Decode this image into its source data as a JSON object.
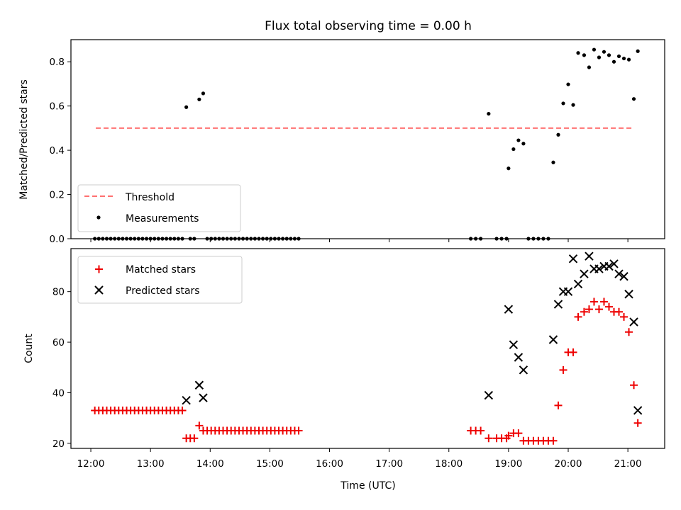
{
  "title": "Flux total observing time = 0.00 h",
  "colors": {
    "threshold": "#ff7070",
    "measurements": "#000000",
    "matched": "#ee0000",
    "predicted": "#000000"
  },
  "chart_data": [
    {
      "type": "scatter",
      "name": "ratio",
      "ylabel": "Matched/Predicted stars",
      "xlim": [
        "11:40",
        "21:37"
      ],
      "ylim": [
        0,
        0.9
      ],
      "yticks": [
        "0.0",
        "0.2",
        "0.4",
        "0.6",
        "0.8"
      ],
      "legend_position": "lower-left",
      "grid": false,
      "series": [
        {
          "name": "Threshold",
          "kind": "dashed-line",
          "x": [
            "12:05",
            "21:05"
          ],
          "y": [
            0.5,
            0.5
          ]
        },
        {
          "name": "Measurements",
          "kind": "points",
          "points": [
            [
              "12:04",
              0
            ],
            [
              "12:08",
              0
            ],
            [
              "12:12",
              0
            ],
            [
              "12:16",
              0
            ],
            [
              "12:20",
              0
            ],
            [
              "12:24",
              0
            ],
            [
              "12:28",
              0
            ],
            [
              "12:32",
              0
            ],
            [
              "12:36",
              0
            ],
            [
              "12:40",
              0
            ],
            [
              "12:44",
              0
            ],
            [
              "12:48",
              0
            ],
            [
              "12:52",
              0
            ],
            [
              "12:56",
              0
            ],
            [
              "13:00",
              0
            ],
            [
              "13:04",
              0
            ],
            [
              "13:08",
              0
            ],
            [
              "13:12",
              0
            ],
            [
              "13:16",
              0
            ],
            [
              "13:20",
              0
            ],
            [
              "13:24",
              0
            ],
            [
              "13:28",
              0
            ],
            [
              "13:32",
              0
            ],
            [
              "13:36",
              0.595
            ],
            [
              "13:40",
              0
            ],
            [
              "13:44",
              0
            ],
            [
              "13:49",
              0.63
            ],
            [
              "13:53",
              0.657
            ],
            [
              "13:57",
              0
            ],
            [
              "14:01",
              0
            ],
            [
              "14:05",
              0
            ],
            [
              "14:09",
              0
            ],
            [
              "14:13",
              0
            ],
            [
              "14:17",
              0
            ],
            [
              "14:21",
              0
            ],
            [
              "14:25",
              0
            ],
            [
              "14:29",
              0
            ],
            [
              "14:33",
              0
            ],
            [
              "14:37",
              0
            ],
            [
              "14:41",
              0
            ],
            [
              "14:45",
              0
            ],
            [
              "14:49",
              0
            ],
            [
              "14:53",
              0
            ],
            [
              "14:57",
              0
            ],
            [
              "15:01",
              0
            ],
            [
              "15:05",
              0
            ],
            [
              "15:09",
              0
            ],
            [
              "15:13",
              0
            ],
            [
              "15:17",
              0
            ],
            [
              "15:21",
              0
            ],
            [
              "15:25",
              0
            ],
            [
              "15:29",
              0
            ],
            [
              "18:22",
              0
            ],
            [
              "18:27",
              0
            ],
            [
              "18:32",
              0
            ],
            [
              "18:40",
              0.565
            ],
            [
              "18:48",
              0
            ],
            [
              "18:53",
              0
            ],
            [
              "18:58",
              0
            ],
            [
              "19:00",
              0.318
            ],
            [
              "19:05",
              0.405
            ],
            [
              "19:10",
              0.445
            ],
            [
              "19:15",
              0.43
            ],
            [
              "19:20",
              0
            ],
            [
              "19:25",
              0
            ],
            [
              "19:30",
              0
            ],
            [
              "19:35",
              0
            ],
            [
              "19:40",
              0
            ],
            [
              "19:45",
              0.345
            ],
            [
              "19:50",
              0.47
            ],
            [
              "19:55",
              0.612
            ],
            [
              "20:00",
              0.698
            ],
            [
              "20:05",
              0.605
            ],
            [
              "20:10",
              0.84
            ],
            [
              "20:16",
              0.83
            ],
            [
              "20:21",
              0.775
            ],
            [
              "20:26",
              0.855
            ],
            [
              "20:31",
              0.82
            ],
            [
              "20:36",
              0.845
            ],
            [
              "20:41",
              0.83
            ],
            [
              "20:46",
              0.8
            ],
            [
              "20:51",
              0.825
            ],
            [
              "20:56",
              0.815
            ],
            [
              "21:01",
              0.81
            ],
            [
              "21:06",
              0.632
            ],
            [
              "21:10",
              0.848
            ]
          ]
        }
      ]
    },
    {
      "type": "scatter",
      "name": "counts",
      "xlabel": "Time (UTC)",
      "ylabel": "Count",
      "xlim": [
        "11:40",
        "21:37"
      ],
      "ylim": [
        18,
        97
      ],
      "yticks": [
        "20",
        "40",
        "60",
        "80"
      ],
      "xticks": [
        "12:00",
        "13:00",
        "14:00",
        "15:00",
        "16:00",
        "17:00",
        "18:00",
        "19:00",
        "20:00",
        "21:00"
      ],
      "legend_position": "upper-left",
      "grid": false,
      "series": [
        {
          "name": "Matched stars",
          "marker": "+",
          "points": [
            [
              "12:04",
              33
            ],
            [
              "12:08",
              33
            ],
            [
              "12:12",
              33
            ],
            [
              "12:16",
              33
            ],
            [
              "12:20",
              33
            ],
            [
              "12:24",
              33
            ],
            [
              "12:28",
              33
            ],
            [
              "12:32",
              33
            ],
            [
              "12:36",
              33
            ],
            [
              "12:40",
              33
            ],
            [
              "12:44",
              33
            ],
            [
              "12:48",
              33
            ],
            [
              "12:52",
              33
            ],
            [
              "12:56",
              33
            ],
            [
              "13:00",
              33
            ],
            [
              "13:04",
              33
            ],
            [
              "13:08",
              33
            ],
            [
              "13:12",
              33
            ],
            [
              "13:16",
              33
            ],
            [
              "13:20",
              33
            ],
            [
              "13:24",
              33
            ],
            [
              "13:28",
              33
            ],
            [
              "13:32",
              33
            ],
            [
              "13:36",
              22
            ],
            [
              "13:40",
              22
            ],
            [
              "13:44",
              22
            ],
            [
              "13:49",
              27
            ],
            [
              "13:53",
              25
            ],
            [
              "13:57",
              25
            ],
            [
              "14:01",
              25
            ],
            [
              "14:05",
              25
            ],
            [
              "14:09",
              25
            ],
            [
              "14:13",
              25
            ],
            [
              "14:17",
              25
            ],
            [
              "14:21",
              25
            ],
            [
              "14:25",
              25
            ],
            [
              "14:29",
              25
            ],
            [
              "14:33",
              25
            ],
            [
              "14:37",
              25
            ],
            [
              "14:41",
              25
            ],
            [
              "14:45",
              25
            ],
            [
              "14:49",
              25
            ],
            [
              "14:53",
              25
            ],
            [
              "14:57",
              25
            ],
            [
              "15:01",
              25
            ],
            [
              "15:05",
              25
            ],
            [
              "15:09",
              25
            ],
            [
              "15:13",
              25
            ],
            [
              "15:17",
              25
            ],
            [
              "15:21",
              25
            ],
            [
              "15:25",
              25
            ],
            [
              "15:29",
              25
            ],
            [
              "18:22",
              25
            ],
            [
              "18:27",
              25
            ],
            [
              "18:32",
              25
            ],
            [
              "18:40",
              22
            ],
            [
              "18:48",
              22
            ],
            [
              "18:53",
              22
            ],
            [
              "18:58",
              22
            ],
            [
              "19:00",
              23
            ],
            [
              "19:05",
              24
            ],
            [
              "19:10",
              24
            ],
            [
              "19:15",
              21
            ],
            [
              "19:20",
              21
            ],
            [
              "19:25",
              21
            ],
            [
              "19:30",
              21
            ],
            [
              "19:35",
              21
            ],
            [
              "19:40",
              21
            ],
            [
              "19:45",
              21
            ],
            [
              "19:50",
              35
            ],
            [
              "19:55",
              49
            ],
            [
              "20:00",
              56
            ],
            [
              "20:05",
              56
            ],
            [
              "20:10",
              70
            ],
            [
              "20:16",
              72
            ],
            [
              "20:21",
              73
            ],
            [
              "20:26",
              76
            ],
            [
              "20:31",
              73
            ],
            [
              "20:36",
              76
            ],
            [
              "20:41",
              74
            ],
            [
              "20:46",
              72
            ],
            [
              "20:51",
              72
            ],
            [
              "20:56",
              70
            ],
            [
              "21:01",
              64
            ],
            [
              "21:06",
              43
            ],
            [
              "21:10",
              28
            ]
          ]
        },
        {
          "name": "Predicted stars",
          "marker": "x",
          "points": [
            [
              "13:36",
              37
            ],
            [
              "13:49",
              43
            ],
            [
              "13:53",
              38
            ],
            [
              "18:40",
              39
            ],
            [
              "19:00",
              73
            ],
            [
              "19:05",
              59
            ],
            [
              "19:10",
              54
            ],
            [
              "19:15",
              49
            ],
            [
              "19:45",
              61
            ],
            [
              "19:50",
              75
            ],
            [
              "19:55",
              80
            ],
            [
              "20:00",
              80
            ],
            [
              "20:05",
              93
            ],
            [
              "20:10",
              83
            ],
            [
              "20:16",
              87
            ],
            [
              "20:21",
              94
            ],
            [
              "20:26",
              89
            ],
            [
              "20:31",
              89
            ],
            [
              "20:36",
              90
            ],
            [
              "20:41",
              90
            ],
            [
              "20:46",
              91
            ],
            [
              "20:51",
              87
            ],
            [
              "20:56",
              86
            ],
            [
              "21:01",
              79
            ],
            [
              "21:06",
              68
            ],
            [
              "21:10",
              33
            ]
          ]
        }
      ]
    }
  ]
}
